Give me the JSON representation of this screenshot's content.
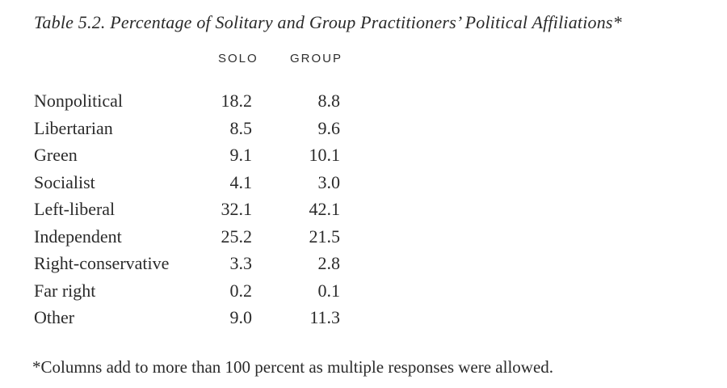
{
  "page": {
    "background": "#ffffff",
    "text_color": "#2a2a2a"
  },
  "table": {
    "title": "Table 5.2. Percentage of Solitary and Group Practitioners’ Political Affiliations*",
    "columns": [
      "SOLO",
      "GROUP"
    ],
    "rows": [
      {
        "label": "Nonpolitical",
        "solo": "18.2",
        "group": "8.8"
      },
      {
        "label": "Libertarian",
        "solo": "8.5",
        "group": "9.6"
      },
      {
        "label": "Green",
        "solo": "9.1",
        "group": "10.1"
      },
      {
        "label": "Socialist",
        "solo": "4.1",
        "group": "3.0"
      },
      {
        "label": "Left-liberal",
        "solo": "32.1",
        "group": "42.1"
      },
      {
        "label": "Independent",
        "solo": "25.2",
        "group": "21.5"
      },
      {
        "label": "Right-conservative",
        "solo": "3.3",
        "group": "2.8"
      },
      {
        "label": "Far right",
        "solo": "0.2",
        "group": "0.1"
      },
      {
        "label": "Other",
        "solo": "9.0",
        "group": "11.3"
      }
    ],
    "footnote": "*Columns add to more than 100 percent as multiple responses were allowed."
  }
}
